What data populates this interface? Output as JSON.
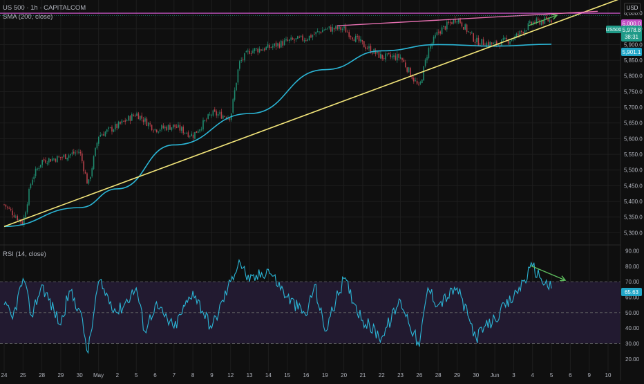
{
  "header": {
    "symbol_title": "US 500 · 1h · CAPITALCOM",
    "sma_legend": "SMA (200, close)",
    "rsi_legend": "RSI (14, close)",
    "currency_button": "USD"
  },
  "colors": {
    "background": "#0f0f0f",
    "grid": "#1e1e1e",
    "candle_up": "#1f8a6e",
    "candle_down": "#b8404a",
    "sma": "#2bb6d6",
    "trendline": "#f2e57a",
    "resistance": "#e25fe0",
    "channel_top": "#e56fb0",
    "arrow": "#5fbf5f",
    "rsi_line": "#2bb6d6",
    "rsi_band": "#221a30",
    "axis_text": "#b2b5be"
  },
  "price_axis": {
    "ticks": [
      "6,000.0",
      "5,950.0",
      "5,900.0",
      "5,850.0",
      "5,800.0",
      "5,750.0",
      "5,700.0",
      "5,650.0",
      "5,600.0",
      "5,550.0",
      "5,500.0",
      "5,450.0",
      "5,400.0",
      "5,350.0",
      "5,300.0"
    ]
  },
  "price_labels": {
    "resistance": "6,000.0",
    "symbol": "US500",
    "last_price": "5,978.8",
    "countdown": "38:31",
    "sma_value": "5,901.1"
  },
  "rsi_axis": {
    "ticks": [
      "90.00",
      "80.00",
      "70.00",
      "60.00",
      "50.00",
      "40.00",
      "30.00",
      "20.00"
    ],
    "current": "65.63"
  },
  "time_axis": {
    "labels": [
      "24",
      "25",
      "28",
      "29",
      "30",
      "May",
      "2",
      "5",
      "6",
      "7",
      "8",
      "9",
      "12",
      "13",
      "14",
      "15",
      "16",
      "19",
      "20",
      "21",
      "22",
      "23",
      "26",
      "28",
      "29",
      "30",
      "Jun",
      "3",
      "4",
      "5",
      "6",
      "9",
      "10"
    ]
  },
  "chart_data": [
    {
      "type": "candlestick",
      "symbol": "US 500",
      "interval": "1h",
      "source": "CAPITALCOM",
      "ylim": [
        5270,
        6020
      ],
      "sma_200_last": 5901.1,
      "last_price": 5978.8,
      "resistance_level": 6000.0,
      "trendline": {
        "from": [
          "Apr 24",
          5320
        ],
        "to": [
          "Jun 5",
          5965
        ]
      },
      "close_path": [
        {
          "x": "Apr 24",
          "y": 5390
        },
        {
          "x": "Apr 25",
          "y": 5330
        },
        {
          "x": "Apr 25",
          "y": 5470
        },
        {
          "x": "Apr 28",
          "y": 5530
        },
        {
          "x": "Apr 29",
          "y": 5540
        },
        {
          "x": "Apr 30",
          "y": 5560
        },
        {
          "x": "Apr 30",
          "y": 5450
        },
        {
          "x": "May 1",
          "y": 5610
        },
        {
          "x": "May 2",
          "y": 5640
        },
        {
          "x": "May 5",
          "y": 5680
        },
        {
          "x": "May 6",
          "y": 5630
        },
        {
          "x": "May 7",
          "y": 5640
        },
        {
          "x": "May 8",
          "y": 5610
        },
        {
          "x": "May 9",
          "y": 5680
        },
        {
          "x": "May 12",
          "y": 5670
        },
        {
          "x": "May 12",
          "y": 5840
        },
        {
          "x": "May 13",
          "y": 5880
        },
        {
          "x": "May 14",
          "y": 5890
        },
        {
          "x": "May 15",
          "y": 5910
        },
        {
          "x": "May 16",
          "y": 5920
        },
        {
          "x": "May 19",
          "y": 5950
        },
        {
          "x": "May 20",
          "y": 5950
        },
        {
          "x": "May 21",
          "y": 5900
        },
        {
          "x": "May 22",
          "y": 5860
        },
        {
          "x": "May 23",
          "y": 5860
        },
        {
          "x": "May 26",
          "y": 5760
        },
        {
          "x": "May 26",
          "y": 5880
        },
        {
          "x": "May 28",
          "y": 5940
        },
        {
          "x": "May 29",
          "y": 5985
        },
        {
          "x": "May 30",
          "y": 5910
        },
        {
          "x": "Jun 2",
          "y": 5900
        },
        {
          "x": "Jun 3",
          "y": 5920
        },
        {
          "x": "Jun 4",
          "y": 5970
        },
        {
          "x": "Jun 5",
          "y": 5978.8
        }
      ],
      "sma_path": [
        {
          "x": "Apr 24",
          "y": 5320
        },
        {
          "x": "Apr 30",
          "y": 5380
        },
        {
          "x": "May 2",
          "y": 5440
        },
        {
          "x": "May 7",
          "y": 5580
        },
        {
          "x": "May 13",
          "y": 5680
        },
        {
          "x": "May 19",
          "y": 5820
        },
        {
          "x": "May 22",
          "y": 5880
        },
        {
          "x": "May 28",
          "y": 5900
        },
        {
          "x": "Jun 2",
          "y": 5895
        },
        {
          "x": "Jun 5",
          "y": 5901.1
        }
      ]
    },
    {
      "type": "line",
      "name": "RSI (14, close)",
      "ylim": [
        15,
        92
      ],
      "bands": [
        30,
        50,
        70
      ],
      "current": 65.63,
      "values": [
        {
          "x": "Apr 24",
          "y": 55
        },
        {
          "x": "Apr 24",
          "y": 46
        },
        {
          "x": "Apr 25",
          "y": 72
        },
        {
          "x": "Apr 25",
          "y": 48
        },
        {
          "x": "Apr 28",
          "y": 68
        },
        {
          "x": "Apr 29",
          "y": 42
        },
        {
          "x": "Apr 29",
          "y": 64
        },
        {
          "x": "Apr 30",
          "y": 52
        },
        {
          "x": "Apr 30",
          "y": 24
        },
        {
          "x": "May 1",
          "y": 70
        },
        {
          "x": "May 2",
          "y": 50
        },
        {
          "x": "May 5",
          "y": 66
        },
        {
          "x": "May 5",
          "y": 38
        },
        {
          "x": "May 6",
          "y": 55
        },
        {
          "x": "May 7",
          "y": 40
        },
        {
          "x": "May 8",
          "y": 64
        },
        {
          "x": "May 9",
          "y": 40
        },
        {
          "x": "May 12",
          "y": 70
        },
        {
          "x": "May 12",
          "y": 84
        },
        {
          "x": "May 13",
          "y": 70
        },
        {
          "x": "May 14",
          "y": 78
        },
        {
          "x": "May 15",
          "y": 60
        },
        {
          "x": "May 16",
          "y": 48
        },
        {
          "x": "May 16",
          "y": 68
        },
        {
          "x": "May 19",
          "y": 38
        },
        {
          "x": "May 20",
          "y": 72
        },
        {
          "x": "May 21",
          "y": 45
        },
        {
          "x": "May 22",
          "y": 34
        },
        {
          "x": "May 23",
          "y": 58
        },
        {
          "x": "May 26",
          "y": 28
        },
        {
          "x": "May 26",
          "y": 66
        },
        {
          "x": "May 28",
          "y": 55
        },
        {
          "x": "May 29",
          "y": 66
        },
        {
          "x": "May 30",
          "y": 34
        },
        {
          "x": "Jun 2",
          "y": 46
        },
        {
          "x": "Jun 3",
          "y": 60
        },
        {
          "x": "Jun 4",
          "y": 80
        },
        {
          "x": "Jun 4",
          "y": 72
        },
        {
          "x": "Jun 5",
          "y": 65.63
        }
      ]
    }
  ]
}
